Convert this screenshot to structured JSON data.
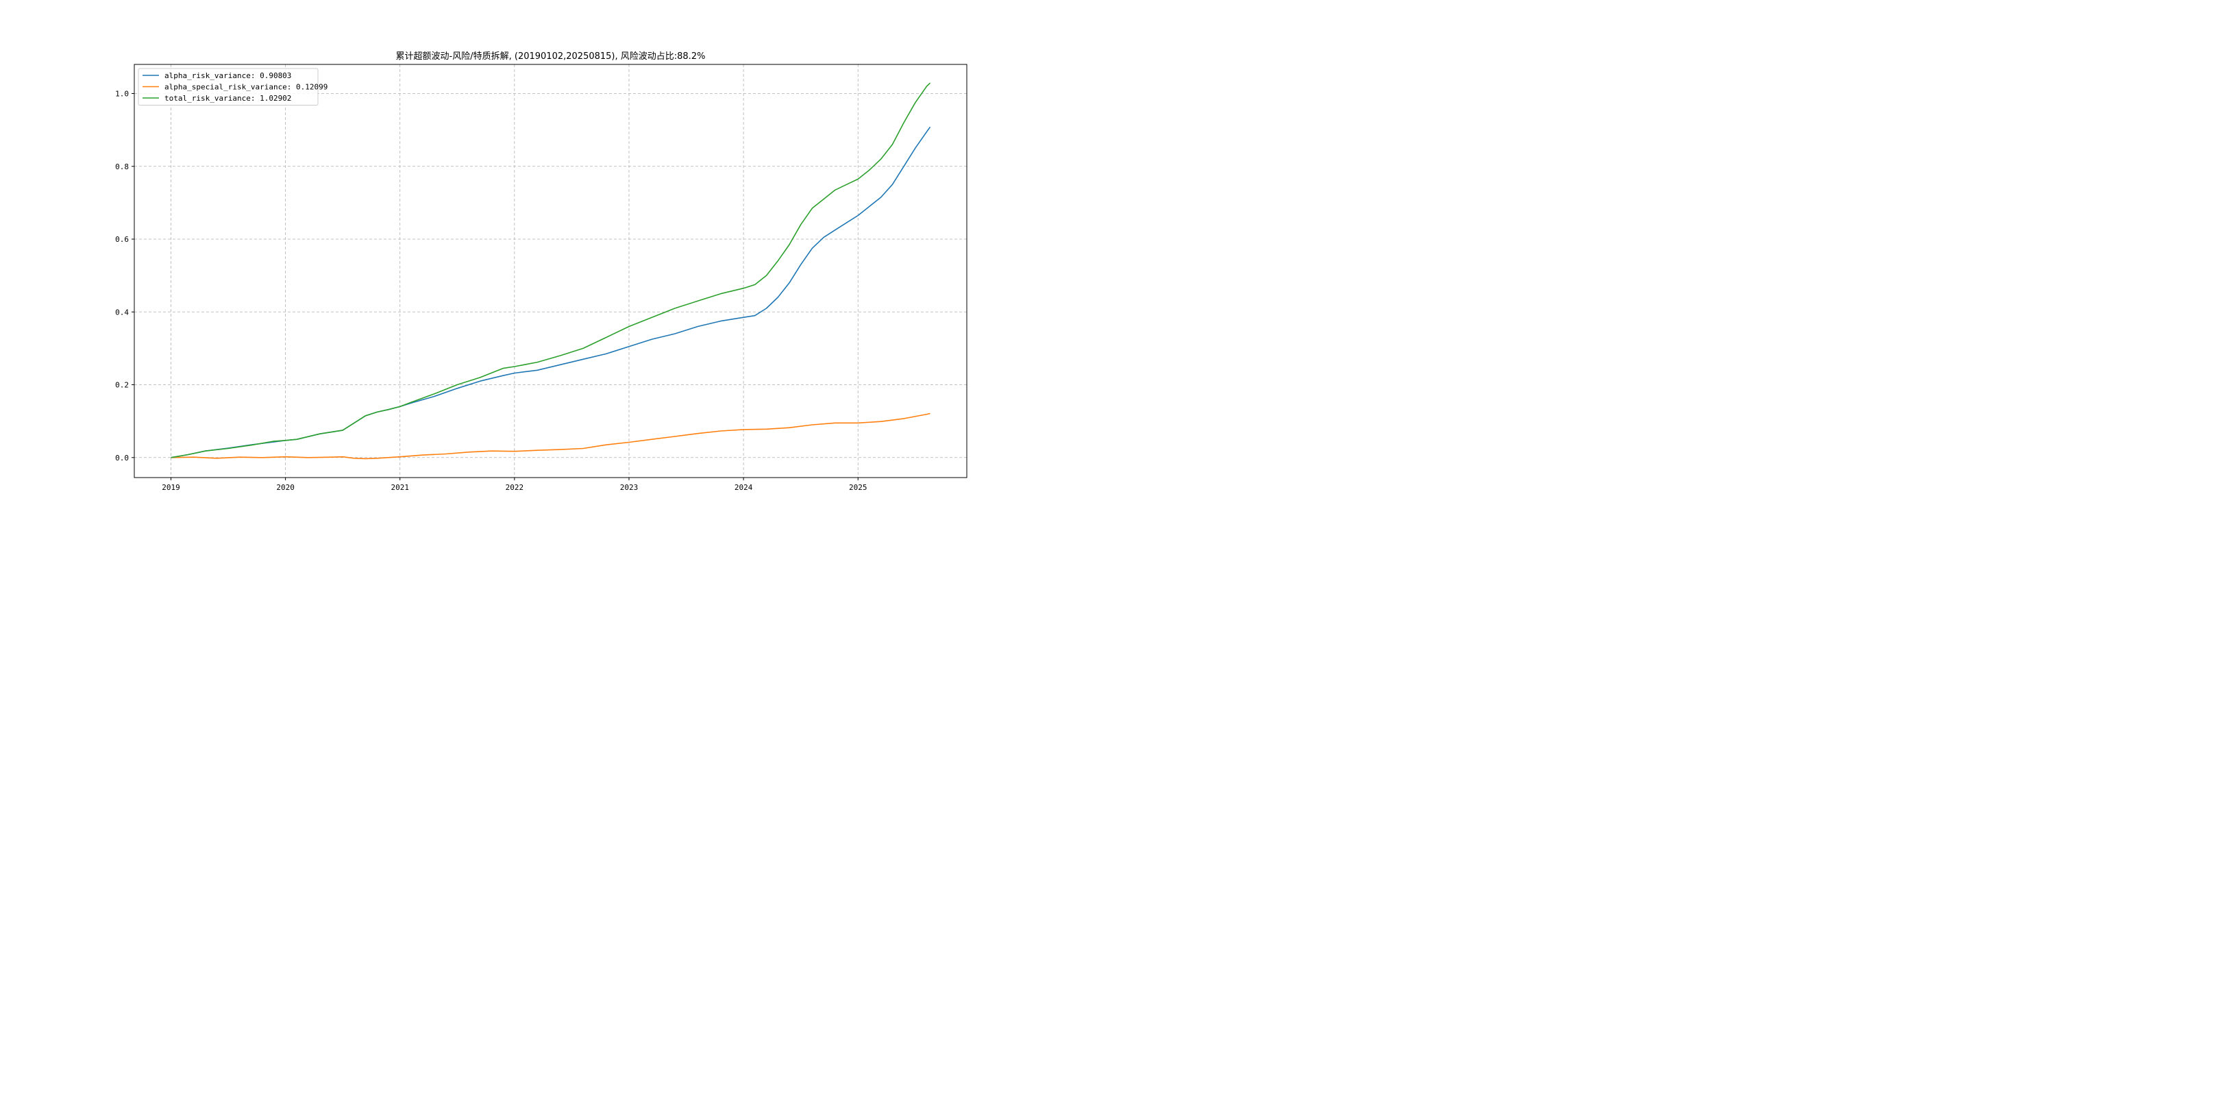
{
  "chart_data": {
    "type": "line",
    "title": "累计超额波动-风险/特质拆解, (20190102,20250815), 风险波动占比:88.2%",
    "xlabel": "",
    "ylabel": "",
    "xlim": [
      2018.68,
      2025.95
    ],
    "ylim": [
      -0.055,
      1.08
    ],
    "x_ticks": [
      2019,
      2020,
      2021,
      2022,
      2023,
      2024,
      2025
    ],
    "x_tick_labels": [
      "2019",
      "2020",
      "2021",
      "2022",
      "2023",
      "2024",
      "2025"
    ],
    "y_ticks": [
      0.0,
      0.2,
      0.4,
      0.6,
      0.8,
      1.0
    ],
    "y_tick_labels": [
      "0.0",
      "0.2",
      "0.4",
      "0.6",
      "0.8",
      "1.0"
    ],
    "grid": true,
    "legend_position": "upper-left",
    "series": [
      {
        "name": "alpha_risk_variance: 0.90803",
        "color": "#1f77b4",
        "x": [
          2019.0,
          2019.15,
          2019.3,
          2019.5,
          2019.7,
          2019.9,
          2020.0,
          2020.1,
          2020.3,
          2020.5,
          2020.6,
          2020.7,
          2020.8,
          2020.9,
          2021.0,
          2021.1,
          2021.3,
          2021.5,
          2021.7,
          2021.9,
          2022.0,
          2022.2,
          2022.4,
          2022.6,
          2022.8,
          2023.0,
          2023.2,
          2023.4,
          2023.6,
          2023.8,
          2024.0,
          2024.1,
          2024.2,
          2024.3,
          2024.4,
          2024.5,
          2024.6,
          2024.7,
          2024.8,
          2024.9,
          2025.0,
          2025.1,
          2025.2,
          2025.3,
          2025.4,
          2025.5,
          2025.6,
          2025.63
        ],
        "y": [
          0.0,
          0.008,
          0.018,
          0.026,
          0.035,
          0.043,
          0.047,
          0.05,
          0.065,
          0.075,
          0.095,
          0.115,
          0.125,
          0.132,
          0.14,
          0.15,
          0.168,
          0.19,
          0.21,
          0.225,
          0.232,
          0.24,
          0.255,
          0.27,
          0.285,
          0.305,
          0.325,
          0.34,
          0.36,
          0.375,
          0.385,
          0.39,
          0.41,
          0.44,
          0.48,
          0.53,
          0.575,
          0.605,
          0.625,
          0.645,
          0.665,
          0.69,
          0.715,
          0.75,
          0.8,
          0.85,
          0.895,
          0.908
        ]
      },
      {
        "name": "alpha_special_risk_variance: 0.12099",
        "color": "#ff7f0e",
        "x": [
          2019.0,
          2019.2,
          2019.4,
          2019.6,
          2019.8,
          2020.0,
          2020.2,
          2020.4,
          2020.5,
          2020.6,
          2020.7,
          2020.8,
          2021.0,
          2021.2,
          2021.4,
          2021.6,
          2021.8,
          2022.0,
          2022.2,
          2022.4,
          2022.6,
          2022.8,
          2023.0,
          2023.2,
          2023.4,
          2023.6,
          2023.8,
          2024.0,
          2024.2,
          2024.4,
          2024.6,
          2024.8,
          2025.0,
          2025.2,
          2025.4,
          2025.6,
          2025.63
        ],
        "y": [
          0.0,
          0.001,
          -0.002,
          0.001,
          0.0,
          0.002,
          0.0,
          0.001,
          0.002,
          -0.002,
          -0.003,
          -0.002,
          0.002,
          0.007,
          0.01,
          0.015,
          0.018,
          0.017,
          0.02,
          0.022,
          0.025,
          0.035,
          0.042,
          0.05,
          0.058,
          0.066,
          0.073,
          0.077,
          0.078,
          0.082,
          0.09,
          0.095,
          0.095,
          0.099,
          0.107,
          0.119,
          0.121
        ]
      },
      {
        "name": "total_risk_variance: 1.02902",
        "color": "#2ca02c",
        "x": [
          2019.0,
          2019.15,
          2019.3,
          2019.5,
          2019.7,
          2019.9,
          2020.0,
          2020.1,
          2020.3,
          2020.5,
          2020.6,
          2020.7,
          2020.8,
          2020.9,
          2021.0,
          2021.1,
          2021.3,
          2021.5,
          2021.7,
          2021.9,
          2022.0,
          2022.2,
          2022.4,
          2022.6,
          2022.8,
          2023.0,
          2023.2,
          2023.4,
          2023.6,
          2023.8,
          2024.0,
          2024.1,
          2024.2,
          2024.3,
          2024.4,
          2024.5,
          2024.6,
          2024.7,
          2024.8,
          2024.9,
          2025.0,
          2025.1,
          2025.2,
          2025.3,
          2025.4,
          2025.5,
          2025.6,
          2025.63
        ],
        "y": [
          0.0,
          0.008,
          0.018,
          0.025,
          0.034,
          0.045,
          0.047,
          0.05,
          0.065,
          0.075,
          0.095,
          0.115,
          0.125,
          0.132,
          0.14,
          0.152,
          0.175,
          0.2,
          0.22,
          0.245,
          0.25,
          0.262,
          0.28,
          0.3,
          0.33,
          0.36,
          0.385,
          0.41,
          0.43,
          0.45,
          0.465,
          0.475,
          0.5,
          0.54,
          0.585,
          0.64,
          0.685,
          0.71,
          0.735,
          0.75,
          0.765,
          0.79,
          0.82,
          0.86,
          0.92,
          0.975,
          1.02,
          1.029
        ]
      }
    ]
  }
}
